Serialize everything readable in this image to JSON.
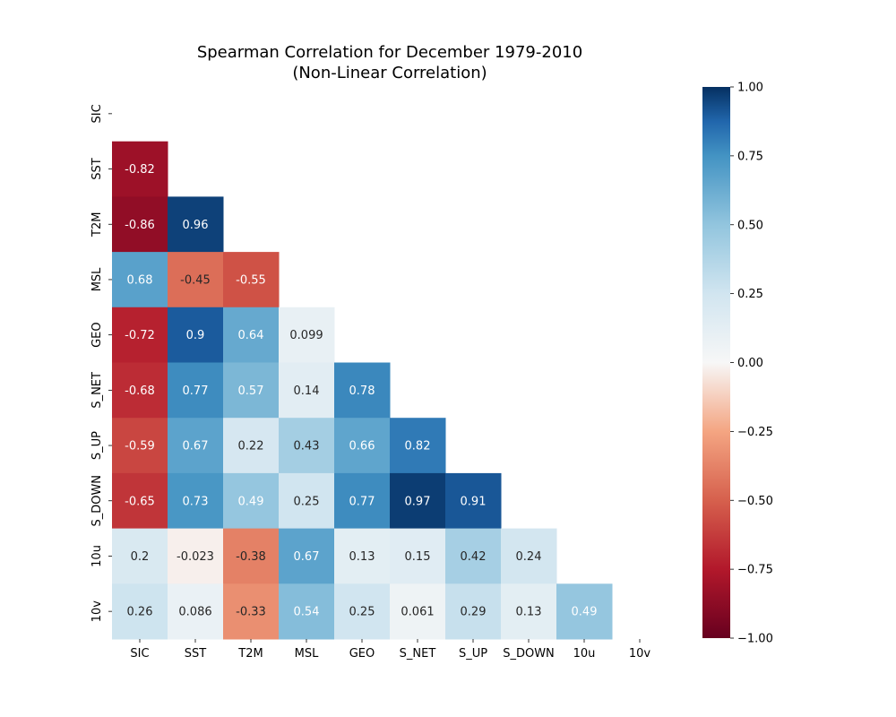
{
  "chart_data": {
    "type": "heatmap",
    "title_line1": "Spearman Correlation for December 1979-2010",
    "title_line2": "(Non-Linear Correlation)",
    "variables": [
      "SIC",
      "SST",
      "T2M",
      "MSL",
      "GEO",
      "S_NET",
      "S_UP",
      "S_DOWN",
      "10u",
      "10v"
    ],
    "matrix_lower": [
      [],
      [
        "-0.82"
      ],
      [
        "-0.86",
        "0.96"
      ],
      [
        "0.68",
        "-0.45",
        "-0.55"
      ],
      [
        "-0.72",
        "0.9",
        "0.64",
        "0.099"
      ],
      [
        "-0.68",
        "0.77",
        "0.57",
        "0.14",
        "0.78"
      ],
      [
        "-0.59",
        "0.67",
        "0.22",
        "0.43",
        "0.66",
        "0.82"
      ],
      [
        "-0.65",
        "0.73",
        "0.49",
        "0.25",
        "0.77",
        "0.97",
        "0.91"
      ],
      [
        "0.2",
        "-0.023",
        "-0.38",
        "0.67",
        "0.13",
        "0.15",
        "0.42",
        "0.24"
      ],
      [
        "0.26",
        "0.086",
        "-0.33",
        "0.54",
        "0.25",
        "0.061",
        "0.29",
        "0.13",
        "0.49"
      ]
    ],
    "mask": "upper triangle including diagonal",
    "colormap": "RdBu",
    "vmin": -1.0,
    "vmax": 1.0,
    "colorbar_ticks": [
      "1.00",
      "0.75",
      "0.50",
      "0.25",
      "0.00",
      "−0.25",
      "−0.50",
      "−0.75",
      "−1.00"
    ],
    "colorbar_tick_values": [
      1.0,
      0.75,
      0.5,
      0.25,
      0.0,
      -0.25,
      -0.5,
      -0.75,
      -1.0
    ],
    "grid": false,
    "legend": "colorbar right"
  }
}
